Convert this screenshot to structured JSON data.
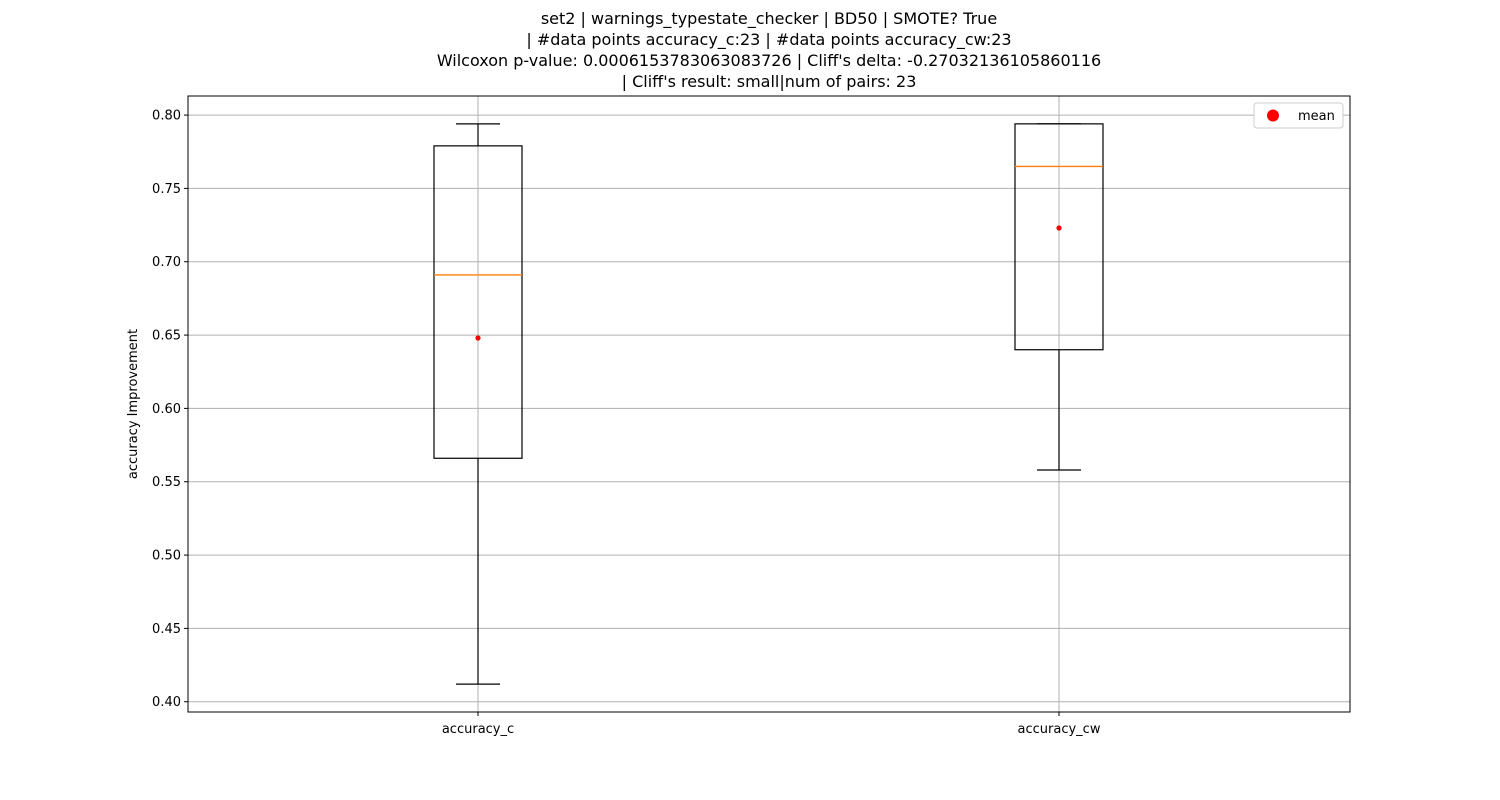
{
  "chart_data": {
    "type": "box",
    "title_lines": [
      "set2 | warnings_typestate_checker | BD50 | SMOTE? True",
      "| #data points accuracy_c:23 | #data points accuracy_cw:23",
      "Wilcoxon p-value: 0.0006153783063083726 | Cliff's delta: -0.27032136105860116",
      "| Cliff's result: small|num of pairs: 23"
    ],
    "xlabel": "",
    "ylabel": "accuracy Improvement",
    "categories": [
      "accuracy_c",
      "accuracy_cw"
    ],
    "boxes": [
      {
        "name": "accuracy_c",
        "whisker_low": 0.412,
        "q1": 0.566,
        "median": 0.691,
        "q3": 0.779,
        "whisker_high": 0.794,
        "mean": 0.648
      },
      {
        "name": "accuracy_cw",
        "whisker_low": 0.558,
        "q1": 0.64,
        "median": 0.765,
        "q3": 0.794,
        "whisker_high": 0.794,
        "mean": 0.723
      }
    ],
    "ylim": [
      0.393,
      0.813
    ],
    "yticks": [
      0.4,
      0.45,
      0.5,
      0.55,
      0.6,
      0.65,
      0.7,
      0.75,
      0.8
    ],
    "ytick_labels": [
      "0.40",
      "0.45",
      "0.50",
      "0.55",
      "0.60",
      "0.65",
      "0.70",
      "0.75",
      "0.80"
    ],
    "grid": true,
    "legend": {
      "position": "top-right",
      "entries": [
        {
          "label": "mean",
          "marker": "circle",
          "color": "#ff0000"
        }
      ]
    },
    "colors": {
      "box": "#000000",
      "median": "#ff7f0e",
      "mean": "#ff0000",
      "grid": "#b0b0b0"
    }
  }
}
